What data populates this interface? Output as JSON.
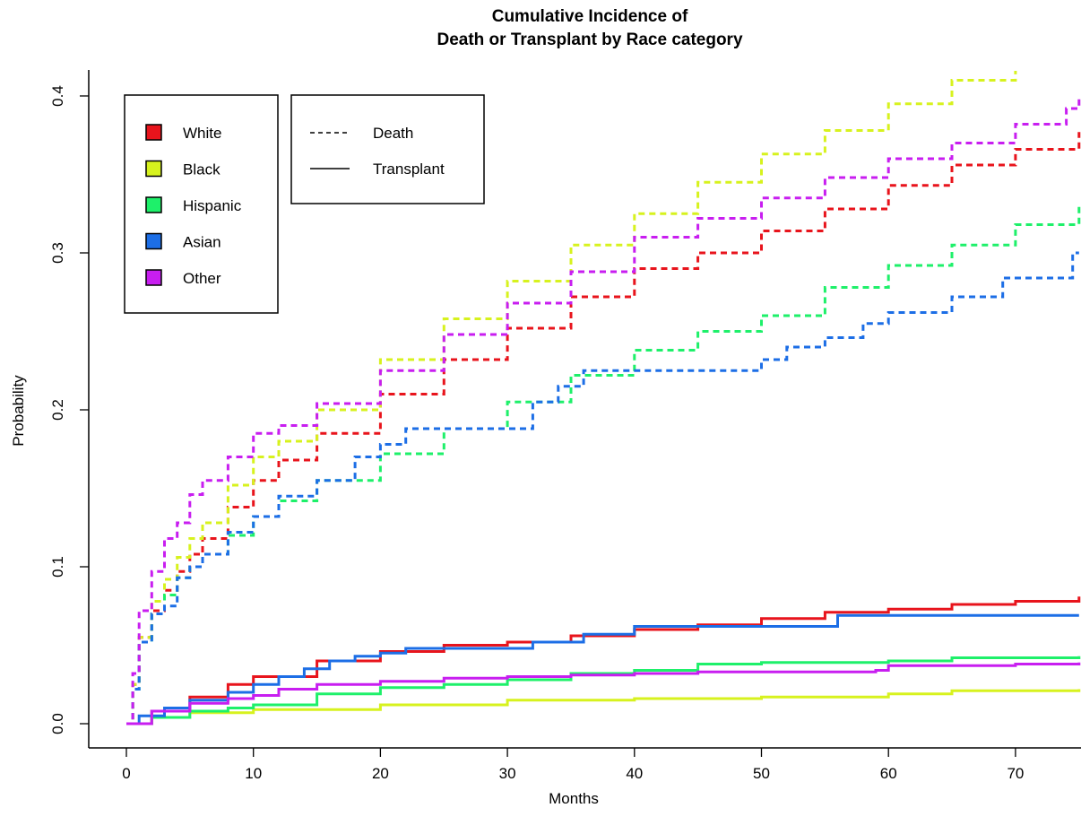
{
  "chart_data": {
    "type": "line",
    "title_line1": "Cumulative Incidence of",
    "title_line2": "Death or Transplant by Race category",
    "xlabel": "Months",
    "ylabel": "Probability",
    "xlim": [
      0,
      75
    ],
    "ylim": [
      0,
      0.41
    ],
    "xticks": [
      0,
      10,
      20,
      30,
      40,
      50,
      60,
      70
    ],
    "yticks": [
      0.0,
      0.1,
      0.2,
      0.3,
      0.4
    ],
    "ytick_labels": [
      "0.0",
      "0.1",
      "0.2",
      "0.3",
      "0.4"
    ],
    "grid": false,
    "race_legend": [
      {
        "label": "White",
        "color": "#e8141c"
      },
      {
        "label": "Black",
        "color": "#d7f21e"
      },
      {
        "label": "Hispanic",
        "color": "#1ef06a"
      },
      {
        "label": "Asian",
        "color": "#1c6ee6"
      },
      {
        "label": "Other",
        "color": "#c81ef0"
      }
    ],
    "linetype_legend": [
      {
        "label": "Death",
        "style": "dashed"
      },
      {
        "label": "Transplant",
        "style": "solid"
      }
    ],
    "series": [
      {
        "race": "White",
        "outcome": "Death",
        "color": "#e8141c",
        "style": "dashed",
        "x": [
          0,
          0.5,
          1,
          2,
          3,
          4,
          5,
          6,
          8,
          10,
          12,
          15,
          20,
          25,
          30,
          35,
          40,
          45,
          50,
          55,
          60,
          65,
          70,
          75
        ],
        "y": [
          0,
          0.025,
          0.055,
          0.072,
          0.085,
          0.097,
          0.108,
          0.118,
          0.138,
          0.155,
          0.168,
          0.185,
          0.21,
          0.232,
          0.252,
          0.272,
          0.29,
          0.3,
          0.314,
          0.328,
          0.343,
          0.356,
          0.366,
          0.377
        ]
      },
      {
        "race": "Black",
        "outcome": "Death",
        "color": "#d7f21e",
        "style": "dashed",
        "x": [
          0,
          0.5,
          1,
          2,
          3,
          4,
          5,
          6,
          8,
          10,
          12,
          15,
          20,
          25,
          30,
          35,
          40,
          45,
          50,
          55,
          60,
          65,
          70
        ],
        "y": [
          0,
          0.025,
          0.055,
          0.078,
          0.092,
          0.106,
          0.118,
          0.128,
          0.152,
          0.17,
          0.18,
          0.2,
          0.232,
          0.258,
          0.282,
          0.305,
          0.325,
          0.345,
          0.363,
          0.378,
          0.395,
          0.41,
          0.416
        ]
      },
      {
        "race": "Hispanic",
        "outcome": "Death",
        "color": "#1ef06a",
        "style": "dashed",
        "x": [
          0,
          0.5,
          1,
          2,
          3,
          4,
          5,
          6,
          8,
          10,
          12,
          15,
          20,
          25,
          30,
          35,
          40,
          45,
          50,
          55,
          60,
          65,
          70,
          75
        ],
        "y": [
          0,
          0.022,
          0.052,
          0.07,
          0.082,
          0.093,
          0.1,
          0.108,
          0.12,
          0.132,
          0.142,
          0.155,
          0.172,
          0.188,
          0.205,
          0.222,
          0.238,
          0.25,
          0.26,
          0.278,
          0.292,
          0.305,
          0.318,
          0.33
        ]
      },
      {
        "race": "Asian",
        "outcome": "Death",
        "color": "#1c6ee6",
        "style": "dashed",
        "x": [
          0,
          0.5,
          1,
          2,
          3,
          4,
          5,
          6,
          8,
          10,
          12,
          15,
          18,
          20,
          22,
          27,
          32,
          34,
          36,
          44,
          50,
          52,
          55,
          58,
          60,
          65,
          69,
          74.5,
          75
        ],
        "y": [
          0,
          0.022,
          0.052,
          0.07,
          0.075,
          0.093,
          0.1,
          0.108,
          0.122,
          0.132,
          0.145,
          0.155,
          0.17,
          0.178,
          0.188,
          0.188,
          0.205,
          0.215,
          0.225,
          0.225,
          0.232,
          0.24,
          0.246,
          0.255,
          0.262,
          0.272,
          0.284,
          0.3,
          0.3
        ]
      },
      {
        "race": "Other",
        "outcome": "Death",
        "color": "#c81ef0",
        "style": "dashed",
        "x": [
          0,
          0.5,
          1,
          2,
          3,
          4,
          5,
          6,
          8,
          10,
          12,
          15,
          20,
          25,
          30,
          35,
          40,
          45,
          50,
          55,
          60,
          65,
          70,
          74,
          75
        ],
        "y": [
          0,
          0.032,
          0.072,
          0.097,
          0.118,
          0.128,
          0.146,
          0.155,
          0.17,
          0.185,
          0.19,
          0.204,
          0.225,
          0.248,
          0.268,
          0.288,
          0.31,
          0.322,
          0.335,
          0.348,
          0.36,
          0.37,
          0.382,
          0.392,
          0.4
        ]
      },
      {
        "race": "White",
        "outcome": "Transplant",
        "color": "#e8141c",
        "style": "solid",
        "x": [
          0,
          2,
          5,
          8,
          10,
          15,
          20,
          25,
          30,
          35,
          40,
          45,
          50,
          55,
          60,
          65,
          70,
          75
        ],
        "y": [
          0,
          0.008,
          0.017,
          0.025,
          0.03,
          0.04,
          0.046,
          0.05,
          0.052,
          0.056,
          0.06,
          0.063,
          0.067,
          0.071,
          0.073,
          0.076,
          0.078,
          0.081
        ]
      },
      {
        "race": "Black",
        "outcome": "Transplant",
        "color": "#d7f21e",
        "style": "solid",
        "x": [
          0,
          2,
          5,
          10,
          20,
          30,
          40,
          50,
          60,
          65,
          75
        ],
        "y": [
          0,
          0.004,
          0.007,
          0.009,
          0.012,
          0.015,
          0.016,
          0.017,
          0.019,
          0.021,
          0.022
        ]
      },
      {
        "race": "Hispanic",
        "outcome": "Transplant",
        "color": "#1ef06a",
        "style": "solid",
        "x": [
          0,
          2,
          5,
          8,
          10,
          15,
          20,
          25,
          30,
          35,
          40,
          45,
          50,
          55,
          60,
          65,
          75
        ],
        "y": [
          0,
          0.004,
          0.008,
          0.01,
          0.012,
          0.019,
          0.023,
          0.025,
          0.028,
          0.032,
          0.034,
          0.038,
          0.039,
          0.039,
          0.04,
          0.042,
          0.043
        ]
      },
      {
        "race": "Asian",
        "outcome": "Transplant",
        "color": "#1c6ee6",
        "style": "solid",
        "x": [
          0,
          1,
          3,
          5,
          8,
          10,
          12,
          14,
          16,
          18,
          20,
          22,
          30,
          32,
          36,
          40,
          50,
          55.5,
          56,
          75
        ],
        "y": [
          0,
          0.005,
          0.01,
          0.015,
          0.02,
          0.025,
          0.03,
          0.035,
          0.04,
          0.043,
          0.045,
          0.048,
          0.048,
          0.052,
          0.057,
          0.062,
          0.062,
          0.062,
          0.069,
          0.069
        ]
      },
      {
        "race": "Other",
        "outcome": "Transplant",
        "color": "#c81ef0",
        "style": "solid",
        "x": [
          0,
          2,
          5,
          8,
          10,
          12,
          15,
          20,
          25,
          30,
          35,
          40,
          45,
          50,
          55,
          59,
          60,
          70,
          75
        ],
        "y": [
          0,
          0.008,
          0.013,
          0.016,
          0.018,
          0.022,
          0.025,
          0.027,
          0.029,
          0.03,
          0.031,
          0.032,
          0.033,
          0.033,
          0.033,
          0.034,
          0.037,
          0.038,
          0.039
        ]
      }
    ]
  }
}
